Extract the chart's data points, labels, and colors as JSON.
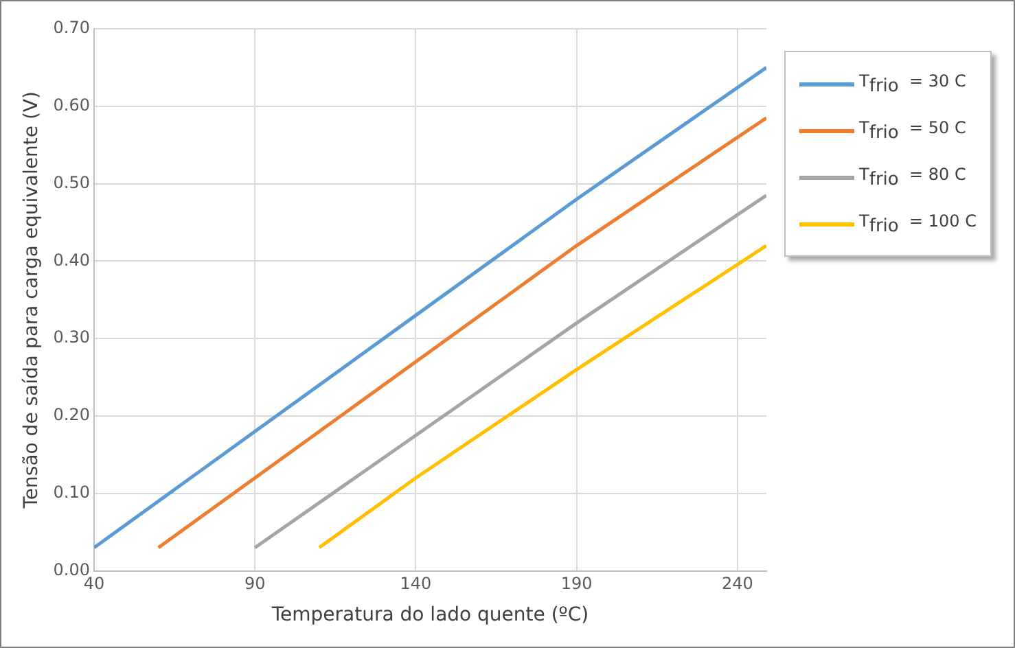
{
  "chart_data": {
    "type": "line",
    "xlabel": "Temperatura do lado quente (ºC)",
    "ylabel": "Tensão de saída para carga equivalente (V)",
    "xlim": [
      40,
      249
    ],
    "xticks": [
      40,
      90,
      140,
      190,
      240
    ],
    "ylim": [
      0,
      0.7
    ],
    "yticks": [
      {
        "value": 0,
        "label": "0.00"
      },
      {
        "value": 0.1,
        "label": "0.10"
      },
      {
        "value": 0.2,
        "label": "0.20"
      },
      {
        "value": 0.3,
        "label": "0.30"
      },
      {
        "value": 0.4,
        "label": "0.40"
      },
      {
        "value": 0.5,
        "label": "0.50"
      },
      {
        "value": 0.6,
        "label": "0.60"
      },
      {
        "value": 0.7,
        "label": "0.70"
      }
    ],
    "grid": true,
    "legend": "top right",
    "line_style": "solid",
    "series": [
      {
        "name": "T$_{frio}$  = 30 C",
        "color": "#5b9bd5",
        "x": [
          40,
          90,
          140,
          190,
          249
        ],
        "values": [
          0.03,
          0.18,
          0.33,
          0.48,
          0.65
        ]
      },
      {
        "name": "T$_{frio}$  = 50 C",
        "color": "#ed7d31",
        "x": [
          60,
          90,
          140,
          190,
          249
        ],
        "values": [
          0.03,
          0.12,
          0.27,
          0.42,
          0.585
        ]
      },
      {
        "name": "T$_{frio}$  = 80 C",
        "color": "#a5a5a5",
        "x": [
          90,
          140,
          190,
          249
        ],
        "values": [
          0.03,
          0.175,
          0.32,
          0.485
        ]
      },
      {
        "name": "T$_{frio}$  = 100 C",
        "color": "#ffc000",
        "x": [
          110,
          140,
          190,
          249
        ],
        "values": [
          0.03,
          0.12,
          0.26,
          0.42
        ]
      }
    ]
  }
}
